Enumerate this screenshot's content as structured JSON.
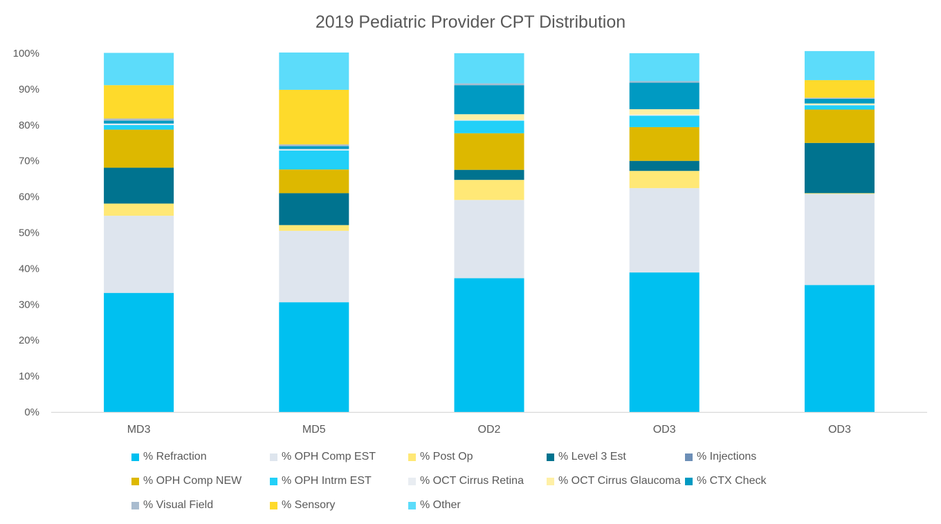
{
  "chart_data": {
    "type": "bar",
    "stacked": true,
    "title": "2019 Pediatric Provider CPT Distribution",
    "xlabel": "",
    "ylabel": "",
    "ylim": [
      0,
      100
    ],
    "yticks": [
      "0%",
      "10%",
      "20%",
      "30%",
      "40%",
      "50%",
      "60%",
      "70%",
      "80%",
      "90%",
      "100%"
    ],
    "categories": [
      "MD3",
      "MD5",
      "OD2",
      "OD3",
      "OD3"
    ],
    "legend_position": "bottom",
    "grid": false,
    "series": [
      {
        "name": "% Refraction",
        "color": "#00C0F0",
        "values": [
          33.2,
          30.6,
          37.3,
          38.9,
          35.4
        ]
      },
      {
        "name": "% OPH Comp EST",
        "color": "#DEE5EE",
        "values": [
          21.5,
          19.9,
          21.8,
          23.5,
          25.4
        ]
      },
      {
        "name": "% Post Op",
        "color": "#FFE876",
        "values": [
          3.4,
          1.6,
          5.6,
          4.8,
          0.2
        ]
      },
      {
        "name": "% Level 3 Est",
        "color": "#00738F",
        "values": [
          10.0,
          8.9,
          2.8,
          2.8,
          14.0
        ]
      },
      {
        "name": "% Injections",
        "color": "#6D8FB7",
        "values": [
          0.0,
          0.0,
          0.0,
          0.0,
          0.0
        ]
      },
      {
        "name": "% OPH Comp NEW",
        "color": "#DDB800",
        "values": [
          10.6,
          6.6,
          10.2,
          9.4,
          9.3
        ]
      },
      {
        "name": "% OPH Intrm EST",
        "color": "#22D0F8",
        "values": [
          1.3,
          5.3,
          3.5,
          3.2,
          1.2
        ]
      },
      {
        "name": "% OCT Cirrus Retina",
        "color": "#E9EDF2",
        "values": [
          0.4,
          0.4,
          0.2,
          0.3,
          0.2
        ]
      },
      {
        "name": "% OCT Cirrus Glaucoma",
        "color": "#FFF0A6",
        "values": [
          0.0,
          0.0,
          1.6,
          1.5,
          0.3
        ]
      },
      {
        "name": "% CTX Check",
        "color": "#009AC2",
        "values": [
          0.8,
          0.8,
          8.1,
          7.4,
          1.3
        ]
      },
      {
        "name": "% Visual Field",
        "color": "#A9BCCF",
        "values": [
          0.6,
          0.5,
          0.5,
          0.4,
          0.3
        ]
      },
      {
        "name": "% Sensory",
        "color": "#FEDA2B",
        "values": [
          9.3,
          15.2,
          0.0,
          0.0,
          4.9
        ]
      },
      {
        "name": "% Other",
        "color": "#5CDCFA",
        "values": [
          9.0,
          10.4,
          8.4,
          7.8,
          8.1
        ]
      }
    ]
  }
}
